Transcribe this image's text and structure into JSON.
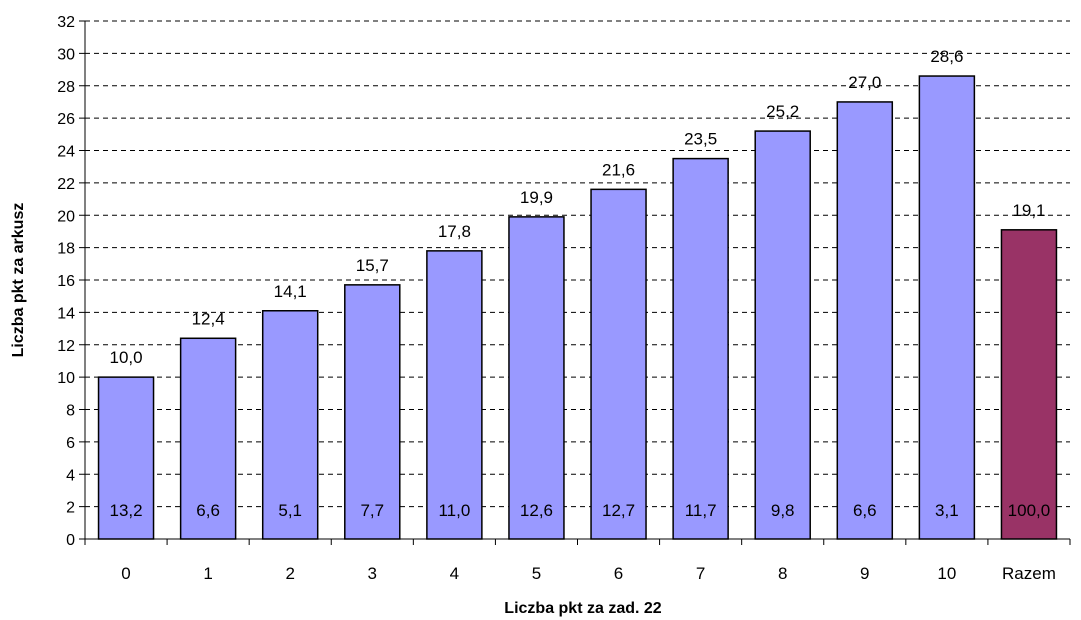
{
  "chart_data": {
    "type": "bar",
    "categories": [
      "0",
      "1",
      "2",
      "3",
      "4",
      "5",
      "6",
      "7",
      "8",
      "9",
      "10",
      "Razem"
    ],
    "values": [
      10.0,
      12.4,
      14.1,
      15.7,
      17.8,
      19.9,
      21.6,
      23.5,
      25.2,
      27.0,
      28.6,
      19.1
    ],
    "value_labels": [
      "10,0",
      "12,4",
      "14,1",
      "15,7",
      "17,8",
      "19,9",
      "21,6",
      "23,5",
      "25,2",
      "27,0",
      "28,6",
      "19,1"
    ],
    "inner_labels": [
      "13,2",
      "6,6",
      "5,1",
      "7,7",
      "11,0",
      "12,6",
      "12,7",
      "11,7",
      "9,8",
      "6,6",
      "3,1",
      "100,0"
    ],
    "xlabel": "Liczba pkt za zad. 22",
    "ylabel": "Liczba pkt za arkusz",
    "ylim": [
      0,
      32
    ],
    "yticks": [
      0,
      2,
      4,
      6,
      8,
      10,
      12,
      14,
      16,
      18,
      20,
      22,
      24,
      26,
      28,
      30,
      32
    ],
    "grid": true,
    "bar_color": "#9999ff",
    "highlight_color": "#993366",
    "highlight_index": 11
  }
}
